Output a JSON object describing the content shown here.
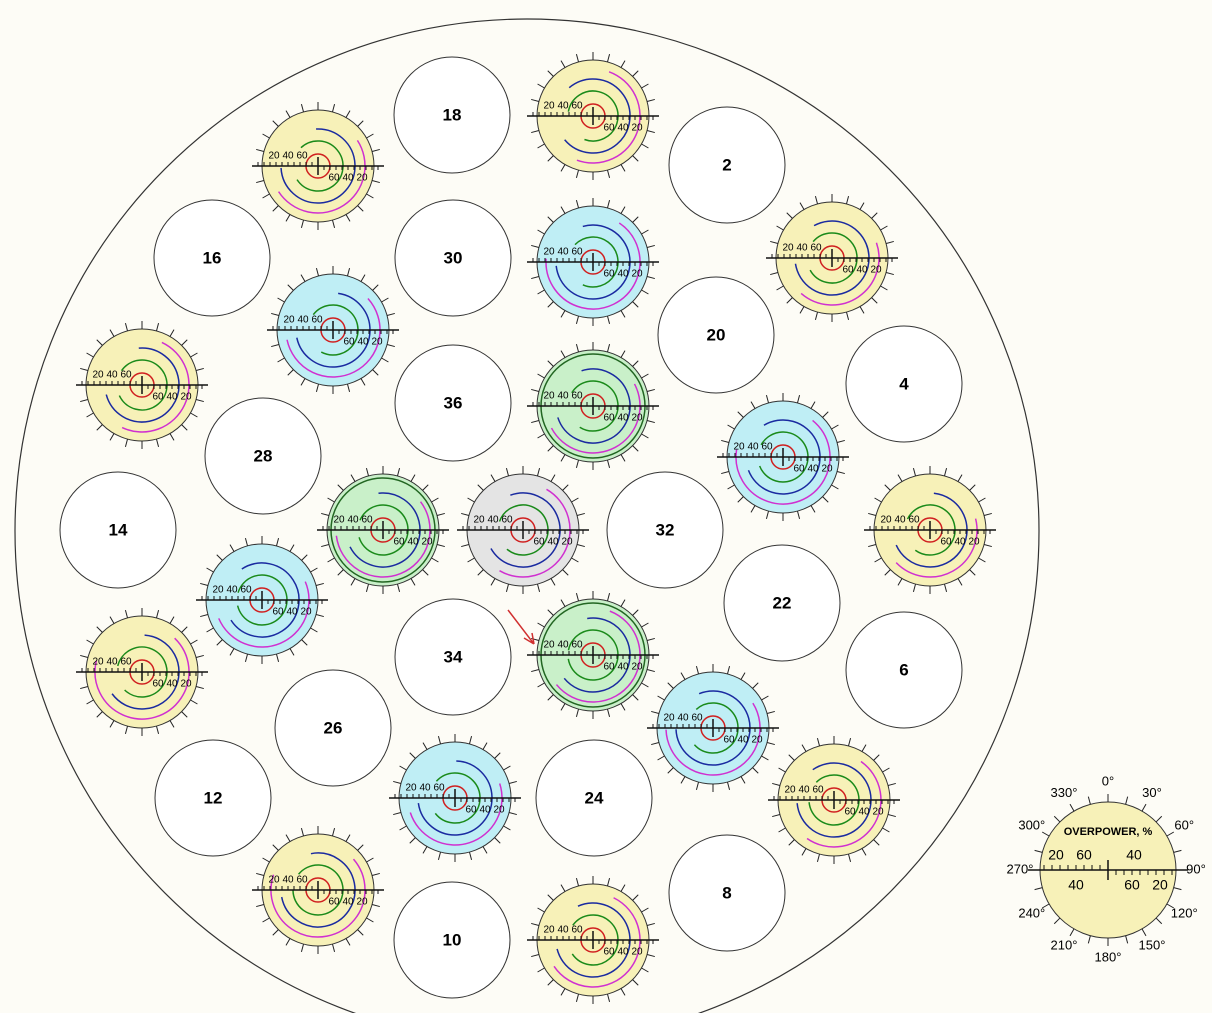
{
  "assemblies": [
    {
      "label": "18"
    },
    {
      "label": "2"
    },
    {
      "label": "16"
    },
    {
      "label": "30"
    },
    {
      "label": "20"
    },
    {
      "label": "4"
    },
    {
      "label": "36"
    },
    {
      "label": "28"
    },
    {
      "label": "14"
    },
    {
      "label": "32"
    },
    {
      "label": "22"
    },
    {
      "label": "34"
    },
    {
      "label": "6"
    },
    {
      "label": "26"
    },
    {
      "label": "12"
    },
    {
      "label": "24"
    },
    {
      "label": "8"
    },
    {
      "label": "10"
    }
  ],
  "gauge_scale": {
    "upper": [
      "20",
      "40",
      "60"
    ],
    "lower": [
      "60",
      "40",
      "20"
    ]
  },
  "legend": {
    "title": "OVERPOWER, %",
    "angles": [
      "0°",
      "30°",
      "60°",
      "90°",
      "120°",
      "150°",
      "180°",
      "210°",
      "240°",
      "270°",
      "300°",
      "330°"
    ],
    "upper": [
      "20",
      "60",
      "40"
    ],
    "lower": [
      "40",
      "60",
      "20"
    ]
  }
}
